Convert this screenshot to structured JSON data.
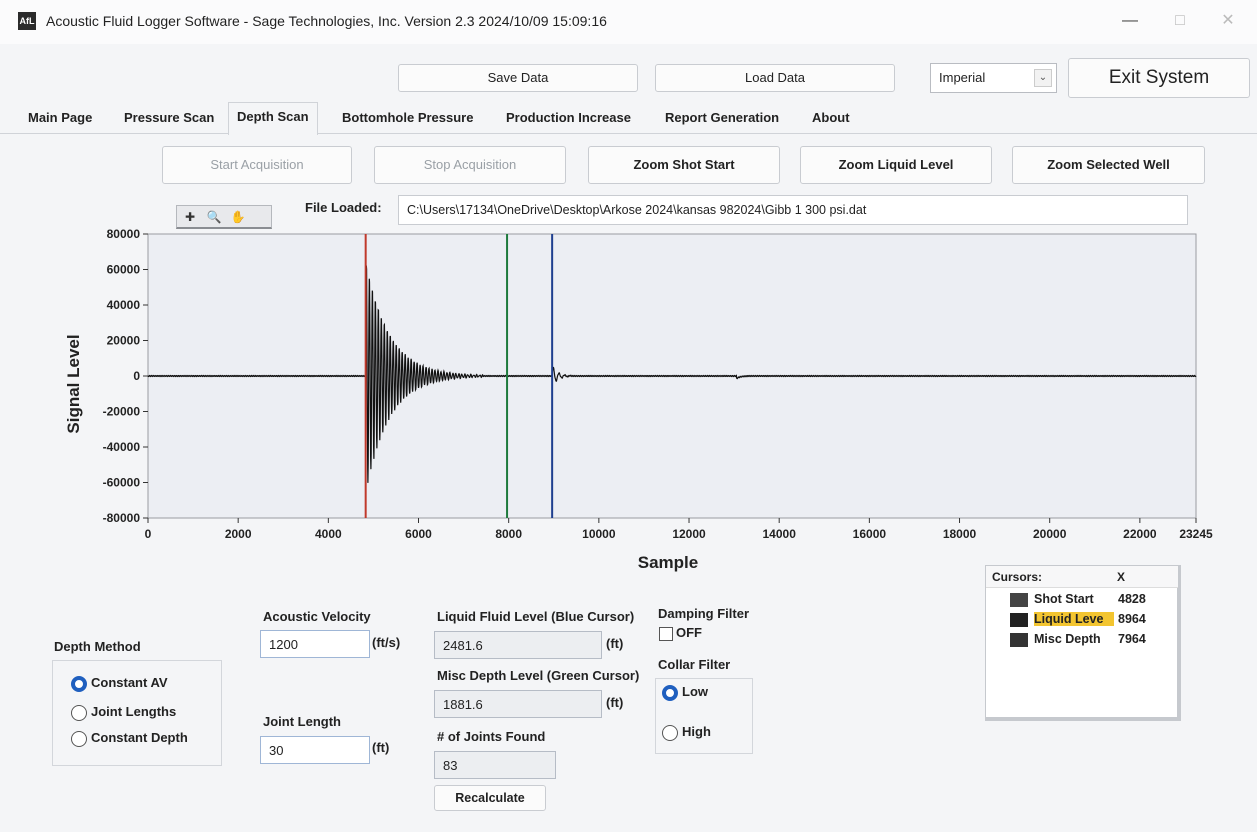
{
  "window": {
    "title": "Acoustic Fluid Logger Software - Sage Technologies, Inc.  Version 2.3 2024/10/09 15:09:16",
    "icon_text": "AfL"
  },
  "toolbar": {
    "save_label": "Save Data",
    "load_label": "Load Data",
    "units_value": "Imperial",
    "exit_label": "Exit System"
  },
  "tabs": [
    "Main Page",
    "Pressure Scan",
    "Depth Scan",
    "Bottomhole Pressure",
    "Production Increase",
    "Report Generation",
    "About"
  ],
  "active_tab": "Depth Scan",
  "actions": {
    "start": "Start Acquisition",
    "stop": "Stop Acquisition",
    "zoom_shot": "Zoom Shot Start",
    "zoom_liquid": "Zoom Liquid Level",
    "zoom_well": "Zoom Selected Well"
  },
  "file": {
    "label": "File Loaded:",
    "path": "C:\\Users\\17134\\OneDrive\\Desktop\\Arkose 2024\\kansas 982024\\Gibb 1 300 psi.dat"
  },
  "chart_data": {
    "type": "line",
    "title": "",
    "xlabel": "Sample",
    "ylabel": "Signal Level",
    "xlim": [
      0,
      23245
    ],
    "ylim": [
      -80000,
      80000
    ],
    "xticks": [
      "0",
      "2000",
      "4000",
      "6000",
      "8000",
      "10000",
      "12000",
      "14000",
      "16000",
      "18000",
      "20000",
      "22000",
      "23245"
    ],
    "yticks": [
      "80000",
      "60000",
      "40000",
      "20000",
      "0",
      "-20000",
      "-40000",
      "-60000",
      "-80000"
    ],
    "cursor_lines": [
      {
        "x": 4828,
        "color": "#c0392b"
      },
      {
        "x": 7964,
        "color": "#1e7a3c"
      },
      {
        "x": 8964,
        "color": "#1f3f8f"
      }
    ],
    "series_color": "#111111",
    "grid": false
  },
  "depth_method": {
    "label": "Depth Method",
    "options": [
      "Constant AV",
      "Joint Lengths",
      "Constant Depth"
    ],
    "selected": 0
  },
  "acoustic_velocity": {
    "label": "Acoustic Velocity",
    "value": "1200",
    "unit": "(ft/s)"
  },
  "joint_length": {
    "label": "Joint Length",
    "value": "30",
    "unit": "(ft)"
  },
  "liquid_level": {
    "label": "Liquid Fluid Level (Blue Cursor)",
    "value": "2481.6",
    "unit": "(ft)"
  },
  "misc_depth": {
    "label": "Misc Depth Level (Green Cursor)",
    "value": "1881.6",
    "unit": "(ft)"
  },
  "joints_found": {
    "label": "# of Joints Found",
    "value": "83"
  },
  "recalculate_label": "Recalculate",
  "damping": {
    "label": "Damping Filter",
    "state": "OFF"
  },
  "collar": {
    "label": "Collar Filter",
    "options": [
      "Low",
      "High"
    ],
    "selected": 0
  },
  "cursors": {
    "header_name": "Cursors:",
    "header_x": "X",
    "rows": [
      {
        "name": "Shot Start",
        "x": "4828",
        "color": "#444444"
      },
      {
        "name": "Liquid Leve",
        "x": "8964",
        "color": "#222222"
      },
      {
        "name": "Misc Depth",
        "x": "7964",
        "color": "#333333"
      }
    ]
  }
}
